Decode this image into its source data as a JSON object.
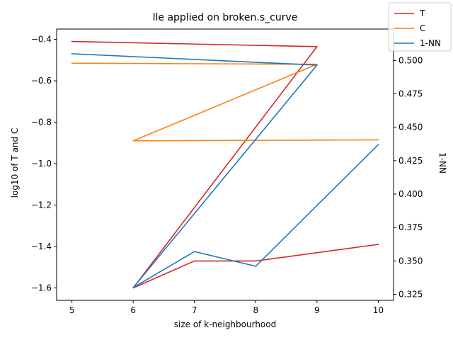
{
  "chart_data": {
    "type": "line",
    "title": "lle applied on broken.s_curve",
    "xlabel": "size of k-neighbourhood",
    "ylabel": "log10 of T and C",
    "y2label": "1-NN",
    "x": [
      5,
      9,
      6,
      10,
      7,
      8,
      9,
      6,
      10,
      7,
      8
    ],
    "xlim": [
      4.75,
      10.25
    ],
    "ylim": [
      -1.66,
      -0.35
    ],
    "y2lim": [
      0.3205,
      0.5235
    ],
    "xticks": [
      5,
      6,
      7,
      8,
      9,
      10
    ],
    "yticks": [
      -1.6,
      -1.4,
      -1.2,
      -1.0,
      -0.8,
      -0.6,
      -0.4
    ],
    "y2ticks": [
      0.325,
      0.35,
      0.375,
      0.4,
      0.425,
      0.45,
      0.475
    ],
    "xtick_labels": [
      "5",
      "6",
      "7",
      "8",
      "9",
      "10"
    ],
    "ytick_labels": [
      "−1.6",
      "−1.4",
      "−1.2",
      "−1.0",
      "−0.8",
      "−0.6",
      "−0.4"
    ],
    "y2tick_labels": [
      "0.325",
      "0.350",
      "0.375",
      "0.400",
      "0.425",
      "0.450",
      "0.475"
    ],
    "y2tick_partial": "0.500",
    "legend_location": "top-right",
    "series": [
      {
        "name": "T",
        "color": "#d62728",
        "axis": "left",
        "x": [
          5,
          9,
          6,
          7,
          8,
          10
        ],
        "values": [
          -0.41,
          -0.435,
          -1.6,
          -1.47,
          -1.47,
          -1.39
        ]
      },
      {
        "name": "C",
        "color": "#ff7f0e",
        "axis": "left",
        "x": [
          5,
          9,
          6,
          10
        ],
        "values": [
          -0.515,
          -0.52,
          -0.89,
          -0.885
        ]
      },
      {
        "name": "1-NN",
        "color": "#1f77b4",
        "axis": "right",
        "x": [
          5,
          9,
          6,
          7,
          8,
          10
        ],
        "values": [
          0.505,
          0.4965,
          0.33,
          0.357,
          0.346,
          0.437
        ]
      }
    ]
  }
}
